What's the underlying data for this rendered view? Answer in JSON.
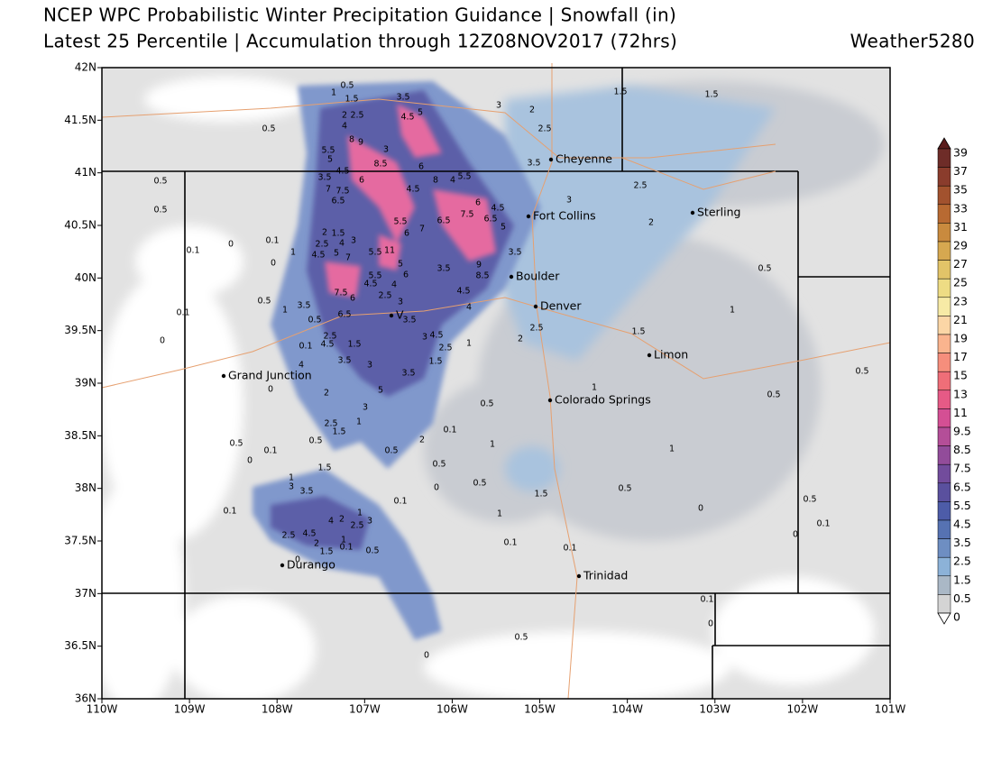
{
  "header": {
    "title": "NCEP WPC Probabilistic Winter Precipitation Guidance | Snowfall (in)",
    "subtitle": "Latest 25 Percentile | Accumulation through 12Z08NOV2017 (72hrs)",
    "credit": "Weather5280"
  },
  "map": {
    "xlim": [
      -110,
      -101
    ],
    "ylim": [
      36,
      42
    ],
    "xticks": [
      {
        "value": -110,
        "label": "110W"
      },
      {
        "value": -109,
        "label": "109W"
      },
      {
        "value": -108,
        "label": "108W"
      },
      {
        "value": -107,
        "label": "107W"
      },
      {
        "value": -106,
        "label": "106W"
      },
      {
        "value": -105,
        "label": "105W"
      },
      {
        "value": -104,
        "label": "104W"
      },
      {
        "value": -103,
        "label": "103W"
      },
      {
        "value": -102,
        "label": "102W"
      },
      {
        "value": -101,
        "label": "101W"
      }
    ],
    "yticks": [
      {
        "value": 36,
        "label": "36N"
      },
      {
        "value": 36.5,
        "label": "36.5N"
      },
      {
        "value": 37,
        "label": "37N"
      },
      {
        "value": 37.5,
        "label": "37.5N"
      },
      {
        "value": 38,
        "label": "38N"
      },
      {
        "value": 38.5,
        "label": "38.5N"
      },
      {
        "value": 39,
        "label": "39N"
      },
      {
        "value": 39.5,
        "label": "39.5N"
      },
      {
        "value": 40,
        "label": "40N"
      },
      {
        "value": 40.5,
        "label": "40.5N"
      },
      {
        "value": 41,
        "label": "41N"
      },
      {
        "value": 41.5,
        "label": "41.5N"
      },
      {
        "value": 42,
        "label": "42N"
      }
    ],
    "cities": [
      "Cheyenne",
      "Fort Collins",
      "Sterling",
      "Boulder",
      "Denver",
      "V",
      "Grand Junction",
      "Limon",
      "Colorado Springs",
      "Durango",
      "Trinidad"
    ],
    "contour_labels": [
      "0.5",
      "1",
      "1.5",
      "3.5",
      "2",
      "2.5",
      "4",
      "4.5",
      "5",
      "0.5",
      "3",
      "2",
      "2.5",
      "1.5",
      "1.5",
      "8",
      "9",
      "5.5",
      "5",
      "3",
      "8.5",
      "6",
      "3.5",
      "0.5",
      "0.5",
      "4.5",
      "3.5",
      "6",
      "7",
      "7.5",
      "4.5",
      "8",
      "4",
      "5.5",
      "2.5",
      "6.5",
      "6",
      "4.5",
      "3",
      "7.5",
      "6.5",
      "5",
      "2",
      "5.5",
      "6.5",
      "6",
      "7",
      "1.5",
      "2",
      "3",
      "0.1",
      "0",
      "0.1",
      "2.5",
      "4",
      "5",
      "4.5",
      "7",
      "11",
      "5.5",
      "1",
      "0",
      "5",
      "3.5",
      "3.5",
      "9",
      "8.5",
      "0.5",
      "5.5",
      "4.5",
      "6",
      "4",
      "7.5",
      "6",
      "2.5",
      "3",
      "4.5",
      "0.5",
      "3.5",
      "1",
      "6.5",
      "0.1",
      "0.5",
      "3.5",
      "4",
      "2.5",
      "1",
      "1.5",
      "0",
      "2.5",
      "4.5",
      "0.1",
      "1.5",
      "3",
      "4.5",
      "2.5",
      "1",
      "2",
      "4",
      "3.5",
      "3",
      "1.5",
      "3.5",
      "0.5",
      "2",
      "5",
      "0",
      "1",
      "0.5",
      "0.5",
      "3",
      "1",
      "2.5",
      "1.5",
      "0.1",
      "2",
      "1",
      "0.5",
      "0.5",
      "0.1",
      "0.5",
      "1",
      "0",
      "0.5",
      "1.5",
      "1",
      "3",
      "3.5",
      "0",
      "0.5",
      "0.5",
      "1.5",
      "0.1",
      "0.5",
      "0.1",
      "1",
      "2",
      "4",
      "2.5",
      "3",
      "0",
      "1",
      "0.1",
      "2.5",
      "4.5",
      "2",
      "1",
      "0.1",
      "0.5",
      "1.5",
      "0.1",
      "0.1",
      "0",
      "0",
      "0.1",
      "0",
      "0.5",
      "0"
    ]
  },
  "colorbar": {
    "labels": [
      "39",
      "37",
      "35",
      "33",
      "31",
      "29",
      "27",
      "25",
      "23",
      "21",
      "19",
      "17",
      "15",
      "13",
      "11",
      "9.5",
      "8.5",
      "7.5",
      "6.5",
      "5.5",
      "4.5",
      "3.5",
      "2.5",
      "1.5",
      "0.5",
      "0"
    ],
    "colors": [
      "#5a1c1c",
      "#6e2c28",
      "#8a3c2c",
      "#a2522e",
      "#b86a32",
      "#c98a3e",
      "#d6a850",
      "#e2c468",
      "#eedc84",
      "#f7eaa6",
      "#fbd6a6",
      "#fab48e",
      "#f68e7c",
      "#ef6e78",
      "#e65a86",
      "#d44f94",
      "#b44e98",
      "#924c9a",
      "#724c9c",
      "#5a509e",
      "#4d5ca8",
      "#5672b2",
      "#6e8ec2",
      "#8cb2d8",
      "#aab8c6",
      "#d4d4d4",
      "#ffffff"
    ]
  }
}
